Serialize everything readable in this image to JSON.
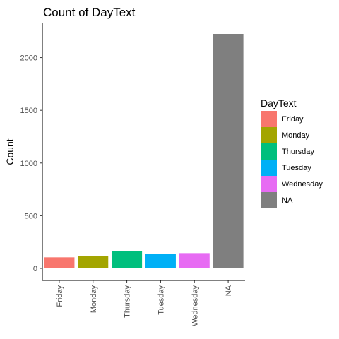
{
  "chart_data": {
    "type": "bar",
    "title": "Count of DayText",
    "xlabel": "",
    "ylabel": "Count",
    "categories": [
      "Friday",
      "Monday",
      "Thursday",
      "Tuesday",
      "Wednesday",
      "NA"
    ],
    "values": [
      105,
      118,
      165,
      138,
      145,
      2225
    ],
    "colors": [
      "#F8766D",
      "#A3A500",
      "#00BF7D",
      "#00B0F6",
      "#E76BF3",
      "#7F7F7F"
    ],
    "ylim": [
      0,
      2225
    ],
    "yticks": [
      0,
      500,
      1000,
      1500,
      2000
    ],
    "grid": false,
    "legend": {
      "title": "DayText",
      "position": "right",
      "entries": [
        "Friday",
        "Monday",
        "Thursday",
        "Tuesday",
        "Wednesday",
        "NA"
      ]
    }
  }
}
